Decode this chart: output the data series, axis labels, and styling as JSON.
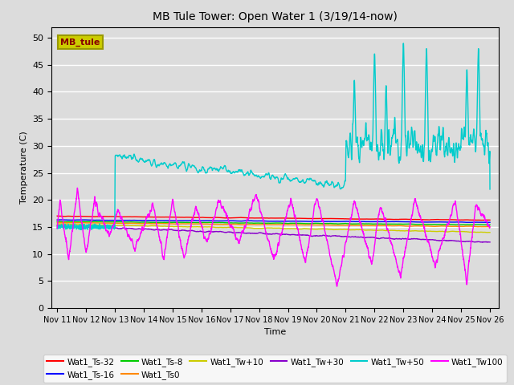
{
  "title": "MB Tule Tower: Open Water 1 (3/19/14-now)",
  "xlabel": "Time",
  "ylabel": "Temperature (C)",
  "ylim": [
    0,
    52
  ],
  "yticks": [
    0,
    5,
    10,
    15,
    20,
    25,
    30,
    35,
    40,
    45,
    50
  ],
  "background_color": "#dcdcdc",
  "grid_color": "#ffffff",
  "legend_box_color": "#cccc00",
  "legend_box_text": "MB_tule",
  "legend_box_text_color": "#880000",
  "series": [
    {
      "label": "Wat1_Ts-32",
      "color": "#ff0000",
      "lw": 1.0
    },
    {
      "label": "Wat1_Ts-16",
      "color": "#0000ff",
      "lw": 1.0
    },
    {
      "label": "Wat1_Ts-8",
      "color": "#00cc00",
      "lw": 1.0
    },
    {
      "label": "Wat1_Ts0",
      "color": "#ff8800",
      "lw": 1.0
    },
    {
      "label": "Wat1_Tw+10",
      "color": "#cccc00",
      "lw": 1.0
    },
    {
      "label": "Wat1_Tw+30",
      "color": "#8800cc",
      "lw": 1.0
    },
    {
      "label": "Wat1_Tw+50",
      "color": "#00cccc",
      "lw": 1.0
    },
    {
      "label": "Wat1_Tw100",
      "color": "#ff00ff",
      "lw": 1.0
    }
  ]
}
